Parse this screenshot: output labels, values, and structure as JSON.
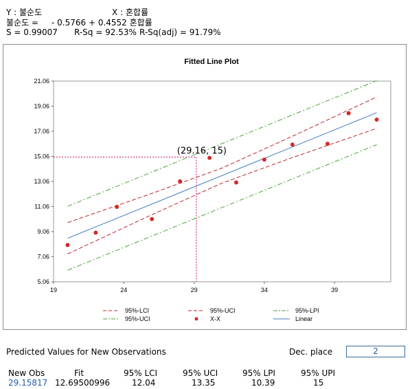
{
  "header": {
    "y_label": "Y : 불순도",
    "x_label": "X : 혼합률",
    "equation_lhs": "불순도 =",
    "equation_rhs": "- 0.5766 + 0.4552 혼합률",
    "s_stat": "S = 0.99007",
    "rsq": "R-Sq = 92.53%",
    "rsq_adj": "R-Sq(adj) = 91.79%"
  },
  "chart_data": {
    "type": "scatter",
    "title": "Fitted Line Plot",
    "xlim": [
      19,
      43
    ],
    "ylim": [
      5.06,
      21.06
    ],
    "x_ticks": [
      "19",
      "24",
      "29",
      "34",
      "39"
    ],
    "y_ticks": [
      "5.06",
      "7.06",
      "9.06",
      "11.06",
      "13.06",
      "15.06",
      "17.06",
      "19.06",
      "21.06"
    ],
    "x_tick_values": [
      19,
      24,
      29,
      34,
      39
    ],
    "y_tick_values": [
      5.06,
      7.06,
      9.06,
      11.06,
      13.06,
      15.06,
      17.06,
      19.06,
      21.06
    ],
    "points": [
      {
        "x": 20.0,
        "y": 7.99
      },
      {
        "x": 22.0,
        "y": 8.98
      },
      {
        "x": 23.5,
        "y": 11.03
      },
      {
        "x": 26.0,
        "y": 10.06
      },
      {
        "x": 28.0,
        "y": 13.07
      },
      {
        "x": 30.1,
        "y": 14.94
      },
      {
        "x": 32.0,
        "y": 12.98
      },
      {
        "x": 34.0,
        "y": 14.8
      },
      {
        "x": 36.0,
        "y": 16.0
      },
      {
        "x": 38.5,
        "y": 16.06
      },
      {
        "x": 40.0,
        "y": 18.5
      },
      {
        "x": 42.0,
        "y": 17.99
      }
    ],
    "fit": {
      "intercept": -0.5766,
      "slope": 0.4552,
      "x_range": [
        20,
        42
      ]
    },
    "bands": {
      "lci_rel": [
        -1.25,
        -0.85,
        -0.6,
        -0.85,
        -1.25
      ],
      "uci_rel": [
        1.25,
        0.85,
        0.6,
        0.85,
        1.25
      ],
      "band_x": [
        20,
        26,
        31,
        36,
        42
      ],
      "lpi_rel": [
        -2.55,
        -2.55
      ],
      "upi_rel": [
        2.55,
        2.55
      ]
    },
    "annotation": {
      "text": "(29.16, 15)",
      "x": 29.16,
      "y": 15
    },
    "legend": [
      {
        "label": "95%-LCI",
        "style": "red-dash"
      },
      {
        "label": "95%-UCI",
        "style": "red-dash"
      },
      {
        "label": "95%-LPI",
        "style": "green-dashdot"
      },
      {
        "label": "95%-UCI",
        "style": "green-dashdot"
      },
      {
        "label": "X-X",
        "style": "red-dot"
      },
      {
        "label": "Linear",
        "style": "blue-line"
      }
    ],
    "legend_placement": "bottom",
    "colors": {
      "ci": "#c0272d",
      "pi": "#4aa33a",
      "fit": "#3b7bbd",
      "points": "#d12a2a",
      "guide": "#cc0066"
    }
  },
  "predicted": {
    "title": "Predicted Values for New Observations",
    "dec_label": "Dec. place",
    "dec_value": "2",
    "headers": [
      "New Obs",
      "Fit",
      "95% LCI",
      "95% UCI",
      "95% LPI",
      "95% UPI"
    ],
    "values": [
      "29.15817",
      "12.69500996",
      "12.04",
      "13.35",
      "10.39",
      "15"
    ]
  }
}
